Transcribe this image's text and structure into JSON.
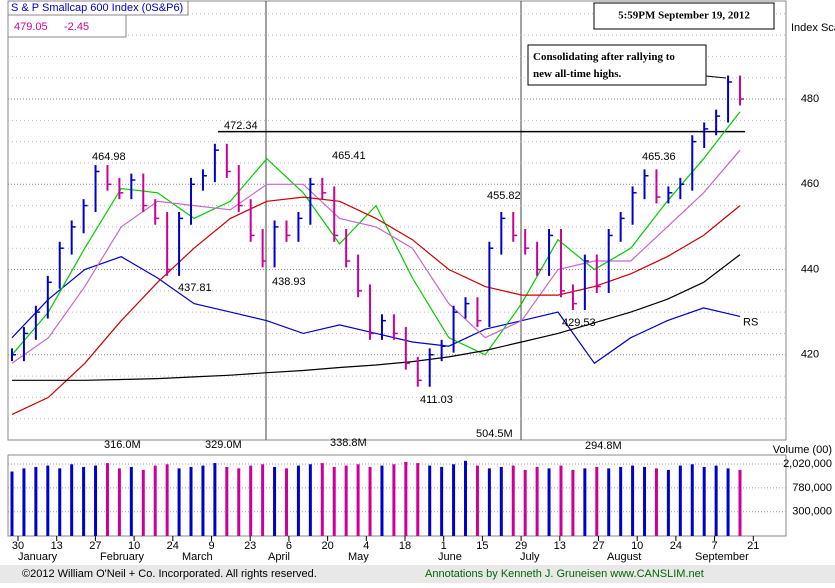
{
  "chart_data": {
    "type": "ohlc",
    "title": "S & P Smallcap 600 Index (0S&P6)",
    "last_price": "479.05",
    "change": "-2.45",
    "timestamp": "5:59PM September 19, 2012",
    "price_axis_label": "Index Scale",
    "note": "Consolidating after rallying to new all-time highs.",
    "volume_axis_label": "Volume (00)",
    "footer_left": "©2012 William O'Neil + Co. Incorporated. All rights reserved.",
    "footer_right": "Annotations by Kenneth J. Gruneisen www.CANSLIM.net",
    "xticks": [
      "30",
      "13",
      "27",
      "10",
      "24",
      "9",
      "23",
      "6",
      "20",
      "4",
      "18",
      "1",
      "15",
      "29",
      "13",
      "27",
      "10",
      "24",
      "7",
      "21"
    ],
    "months": [
      "January",
      "February",
      "March",
      "April",
      "May",
      "June",
      "July",
      "August",
      "September"
    ],
    "ylim": [
      400,
      503
    ],
    "yticks": [
      420,
      440,
      460,
      480
    ],
    "yminor": [
      405,
      410,
      415,
      425,
      430,
      435,
      445,
      450,
      455,
      465,
      470,
      475,
      485,
      490,
      495,
      500
    ],
    "resistance": 472.34,
    "price": {
      "up_color": "#0000cc",
      "down_color": "#cc0099",
      "values": [
        420,
        425,
        430,
        437,
        445,
        450,
        455,
        463,
        460,
        458,
        461,
        455,
        452,
        440,
        452,
        460,
        462,
        468,
        463,
        455,
        448,
        442,
        450,
        448,
        452,
        460,
        458,
        448,
        442,
        435,
        425,
        428,
        425,
        418,
        414,
        420,
        422,
        430,
        432,
        428,
        445,
        452,
        448,
        445,
        440,
        448,
        435,
        432,
        442,
        436,
        448,
        452,
        458,
        462,
        457,
        458,
        460,
        470,
        473,
        476,
        484,
        480
      ]
    },
    "series": [
      {
        "name": "RS",
        "color": "#0000cc",
        "values": [
          424,
          433,
          440,
          443,
          438,
          432,
          430,
          428,
          425,
          427,
          425,
          423,
          422,
          426,
          428,
          430,
          418,
          424,
          428,
          431,
          429
        ]
      },
      {
        "color": "#00cc00",
        "values": [
          420,
          430,
          445,
          459,
          458,
          452,
          456,
          466,
          458,
          446,
          455,
          438,
          424,
          420,
          432,
          447,
          440,
          445,
          456,
          466,
          477
        ]
      },
      {
        "color": "#cc66cc",
        "values": [
          418,
          424,
          436,
          450,
          456,
          455,
          454,
          460,
          460,
          452,
          450,
          445,
          432,
          424,
          428,
          440,
          442,
          442,
          450,
          458,
          468
        ]
      },
      {
        "color": "#cc0000",
        "values": [
          406,
          410,
          418,
          428,
          437,
          445,
          452,
          456,
          457,
          456,
          452,
          447,
          440,
          436,
          434,
          434,
          436,
          439,
          443,
          448,
          455
        ]
      },
      {
        "color": "#000000",
        "values": [
          414,
          414,
          414,
          414.2,
          414.4,
          414.8,
          415.2,
          415.8,
          416.3,
          417,
          417.6,
          418.4,
          419.5,
          421,
          423,
          425,
          427.5,
          430,
          433,
          437,
          443.5
        ]
      }
    ],
    "price_labels": [
      "464.98",
      "472.34",
      "465.41",
      "437.81",
      "438.93",
      "411.03",
      "455.82",
      "429.53",
      "465.36"
    ],
    "volume_labels": [
      "316.0M",
      "329.0M",
      "338.8M",
      "504.5M",
      "294.8M"
    ],
    "volume": [
      1500000,
      1700000,
      1800000,
      1900000,
      1700000,
      2000000,
      1800000,
      1900000,
      2100000,
      1700000,
      1800000,
      1600000,
      1900000,
      2000000,
      1700000,
      1800000,
      1900000,
      2100000,
      1800000,
      1700000,
      1900000,
      2000000,
      1800000,
      1700000,
      1900000,
      2000000,
      2100000,
      1800000,
      1900000,
      2000000,
      1800000,
      1900000,
      2000000,
      2200000,
      2100000,
      1900000,
      1800000,
      2000000,
      2300000,
      1900000,
      1700000,
      1800000,
      1900000,
      1600000,
      1800000,
      1700000,
      1900000,
      1600000,
      1700000,
      1800000,
      1700000,
      1800000,
      1900000,
      1800000,
      1700000,
      1600000,
      1900000,
      2000000,
      1800000,
      1900000,
      1700000,
      1600000
    ],
    "volume_log": true,
    "volume_lim": [
      114000,
      2900000
    ],
    "volume_ticks": [
      {
        "value": 2020000,
        "label": "2,020,000"
      },
      {
        "value": 780000,
        "label": "780,000"
      },
      {
        "value": 300000,
        "label": "300,000"
      }
    ]
  }
}
